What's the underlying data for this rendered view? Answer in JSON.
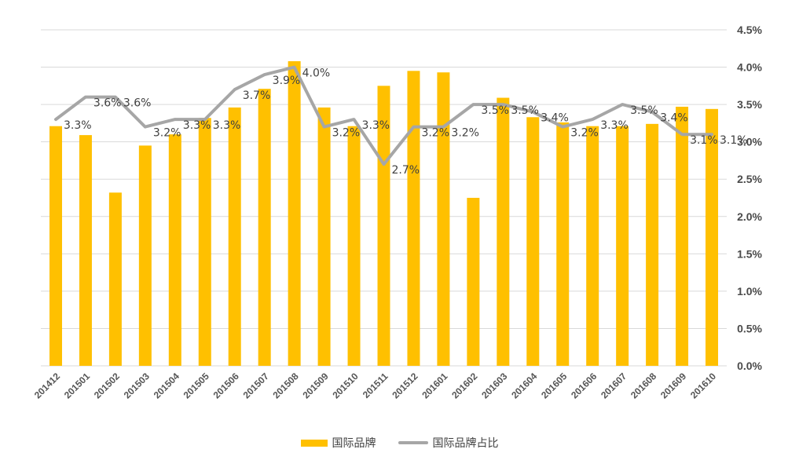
{
  "chart_data": {
    "type": "bar+line",
    "categories": [
      "201412",
      "201501",
      "201502",
      "201503",
      "201504",
      "201505",
      "201506",
      "201507",
      "201508",
      "201509",
      "201510",
      "201511",
      "201512",
      "201601",
      "201602",
      "201603",
      "201604",
      "201605",
      "201606",
      "201607",
      "201608",
      "201609",
      "201610"
    ],
    "series": [
      {
        "name": "国际品牌",
        "type": "bar",
        "axis": "left",
        "values": [
          3.21,
          3.09,
          2.32,
          2.95,
          3.1,
          3.32,
          3.46,
          3.71,
          4.08,
          3.46,
          3.21,
          3.75,
          3.95,
          3.93,
          2.25,
          3.59,
          3.33,
          3.26,
          3.21,
          3.21,
          3.24,
          3.47,
          3.44
        ]
      },
      {
        "name": "国际品牌占比",
        "type": "line",
        "axis": "right",
        "values": [
          3.3,
          3.6,
          3.6,
          3.2,
          3.3,
          3.3,
          3.7,
          3.9,
          4.0,
          3.2,
          3.3,
          2.7,
          3.2,
          3.2,
          3.5,
          3.5,
          3.4,
          3.2,
          3.3,
          3.5,
          3.4,
          3.1,
          3.1
        ],
        "labels": [
          "3.3%",
          "3.6%",
          "3.6%",
          "3.2%",
          "3.3%",
          "3.3%",
          "3.7%",
          "3.9%",
          "4.0%",
          "3.2%",
          "3.3%",
          "2.7%",
          "3.2%",
          "3.2%",
          "3.5%",
          "3.5%",
          "3.4%",
          "3.2%",
          "3.3%",
          "3.5%",
          "3.4%",
          "3.1%",
          "3.1%"
        ]
      }
    ],
    "y_right": {
      "min": 0,
      "max": 4.5,
      "ticks": [
        "0.0%",
        "0.5%",
        "1.0%",
        "1.5%",
        "2.0%",
        "2.5%",
        "3.0%",
        "3.5%",
        "4.0%",
        "4.5%"
      ]
    },
    "grid": true,
    "legend_position": "bottom-center",
    "colors": {
      "bar": "#FFC000",
      "line": "#A6A6A6",
      "grid": "#D9D9D9",
      "text": "#404040"
    }
  },
  "legend": {
    "bar_label": "国际品牌",
    "line_label": "国际品牌占比"
  }
}
